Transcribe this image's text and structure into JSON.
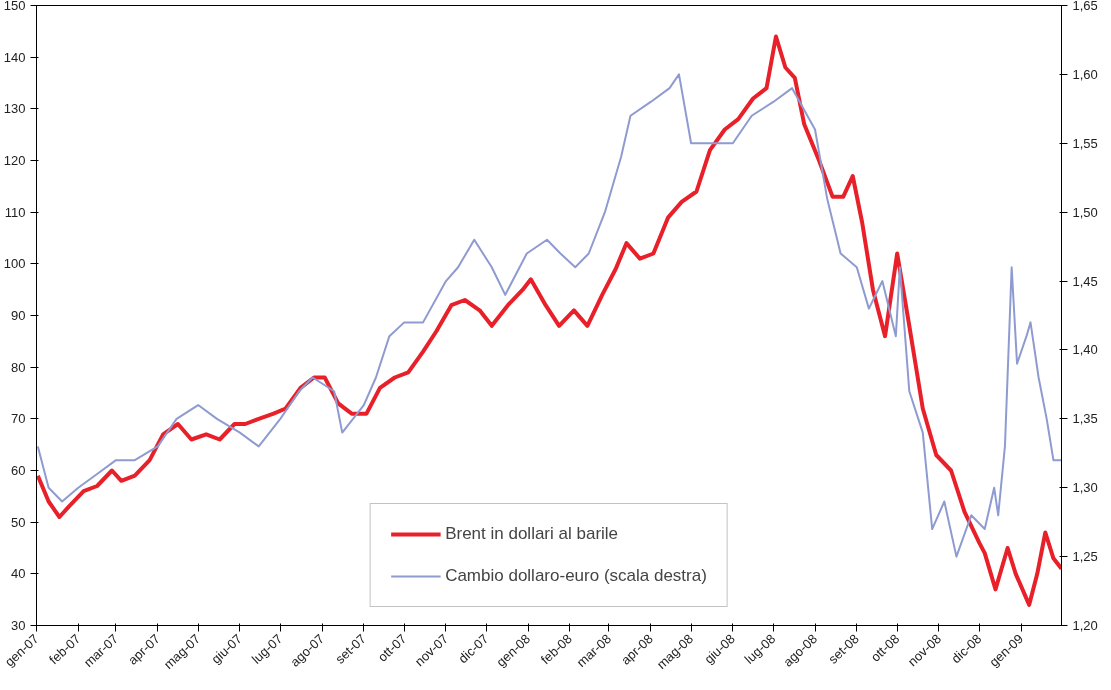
{
  "chart_data": {
    "type": "line",
    "series": [
      {
        "name": "Brent in dollari al barile",
        "color": "#e8202a",
        "x": [
          "2007-01-02",
          "2007-01-10",
          "2007-01-18",
          "2007-01-25",
          "2007-02-05",
          "2007-02-15",
          "2007-02-26",
          "2007-03-05",
          "2007-03-15",
          "2007-03-26",
          "2007-04-05",
          "2007-04-16",
          "2007-04-26",
          "2007-05-07",
          "2007-05-17",
          "2007-05-28",
          "2007-06-05",
          "2007-06-15",
          "2007-06-26",
          "2007-07-05",
          "2007-07-16",
          "2007-07-26",
          "2007-08-03",
          "2007-08-13",
          "2007-08-23",
          "2007-09-03",
          "2007-09-13",
          "2007-09-24",
          "2007-10-04",
          "2007-10-15",
          "2007-10-25",
          "2007-11-05",
          "2007-11-15",
          "2007-11-26",
          "2007-12-05",
          "2007-12-17",
          "2007-12-28",
          "2008-01-03",
          "2008-01-14",
          "2008-01-24",
          "2008-02-04",
          "2008-02-14",
          "2008-02-25",
          "2008-03-06",
          "2008-03-14",
          "2008-03-24",
          "2008-04-03",
          "2008-04-14",
          "2008-04-24",
          "2008-05-05",
          "2008-05-15",
          "2008-05-26",
          "2008-06-05",
          "2008-06-16",
          "2008-06-26",
          "2008-07-03",
          "2008-07-10",
          "2008-07-17",
          "2008-07-24",
          "2008-08-04",
          "2008-08-14",
          "2008-08-22",
          "2008-08-29",
          "2008-09-05",
          "2008-09-13",
          "2008-09-22",
          "2008-10-01",
          "2008-10-10",
          "2008-10-20",
          "2008-10-30",
          "2008-11-10",
          "2008-11-20",
          "2008-12-01",
          "2008-12-05",
          "2008-12-13",
          "2008-12-22",
          "2008-12-28",
          "2009-01-07",
          "2009-01-13",
          "2009-01-19",
          "2009-01-25",
          "2009-01-31"
        ],
        "values": [
          59,
          54,
          51,
          53,
          56,
          57,
          60,
          58,
          59,
          62,
          67,
          69,
          66,
          67,
          66,
          69,
          69,
          70,
          71,
          72,
          76,
          78,
          78,
          73,
          71,
          71,
          76,
          78,
          79,
          83,
          87,
          92,
          93,
          91,
          88,
          92,
          95,
          97,
          92,
          88,
          91,
          88,
          94,
          99,
          104,
          101,
          102,
          109,
          112,
          114,
          122,
          126,
          128,
          132,
          134,
          144,
          138,
          136,
          127,
          120,
          113,
          113,
          117,
          108,
          95,
          86,
          102,
          88,
          72,
          63,
          60,
          52,
          46,
          44,
          37,
          45,
          40,
          34,
          40,
          48,
          43,
          41
        ]
      },
      {
        "name": "Cambio dollaro-euro (scala destra)",
        "color": "#8f9bd0",
        "axis": "y2",
        "x": [
          "2007-01-02",
          "2007-01-10",
          "2007-01-20",
          "2007-02-01",
          "2007-02-15",
          "2007-03-01",
          "2007-03-15",
          "2007-04-01",
          "2007-04-15",
          "2007-05-01",
          "2007-05-15",
          "2007-06-01",
          "2007-06-15",
          "2007-07-01",
          "2007-07-15",
          "2007-07-25",
          "2007-08-10",
          "2007-08-16",
          "2007-09-01",
          "2007-09-10",
          "2007-09-20",
          "2007-10-01",
          "2007-10-15",
          "2007-11-01",
          "2007-11-10",
          "2007-11-22",
          "2007-12-05",
          "2007-12-15",
          "2007-12-31",
          "2008-01-15",
          "2008-01-25",
          "2008-02-05",
          "2008-02-15",
          "2008-02-27",
          "2008-03-10",
          "2008-03-17",
          "2008-04-01",
          "2008-04-15",
          "2008-04-22",
          "2008-05-01",
          "2008-05-15",
          "2008-06-01",
          "2008-06-15",
          "2008-07-01",
          "2008-07-15",
          "2008-08-01",
          "2008-08-10",
          "2008-08-20",
          "2008-09-01",
          "2008-09-10",
          "2008-09-20",
          "2008-09-30",
          "2008-10-03",
          "2008-10-10",
          "2008-10-20",
          "2008-10-27",
          "2008-11-05",
          "2008-11-14",
          "2008-11-25",
          "2008-12-05",
          "2008-12-12",
          "2008-12-15",
          "2008-12-20",
          "2008-12-25",
          "2008-12-29",
          "2009-01-05",
          "2009-01-08",
          "2009-01-14",
          "2009-01-20",
          "2009-01-25",
          "2009-01-31"
        ],
        "values": [
          1.33,
          1.3,
          1.29,
          1.3,
          1.31,
          1.32,
          1.32,
          1.33,
          1.35,
          1.36,
          1.35,
          1.34,
          1.33,
          1.35,
          1.37,
          1.38,
          1.37,
          1.34,
          1.36,
          1.38,
          1.41,
          1.42,
          1.42,
          1.45,
          1.46,
          1.48,
          1.46,
          1.44,
          1.47,
          1.48,
          1.47,
          1.46,
          1.47,
          1.5,
          1.54,
          1.57,
          1.58,
          1.59,
          1.6,
          1.55,
          1.55,
          1.55,
          1.57,
          1.58,
          1.59,
          1.56,
          1.51,
          1.47,
          1.46,
          1.43,
          1.45,
          1.41,
          1.46,
          1.37,
          1.34,
          1.27,
          1.29,
          1.25,
          1.28,
          1.27,
          1.3,
          1.28,
          1.33,
          1.46,
          1.39,
          1.41,
          1.42,
          1.38,
          1.35,
          1.32,
          1.32
        ]
      }
    ],
    "xlim": [
      "2007-01-01",
      "2009-01-31"
    ],
    "xticks": [
      {
        "value": "2007-01-01",
        "label": "gen-07"
      },
      {
        "value": "2007-02-01",
        "label": "feb-07"
      },
      {
        "value": "2007-03-01",
        "label": "mar-07"
      },
      {
        "value": "2007-04-01",
        "label": "apr-07"
      },
      {
        "value": "2007-05-01",
        "label": "mag-07"
      },
      {
        "value": "2007-06-01",
        "label": "giu-07"
      },
      {
        "value": "2007-07-01",
        "label": "lug-07"
      },
      {
        "value": "2007-08-01",
        "label": "ago-07"
      },
      {
        "value": "2007-09-01",
        "label": "set-07"
      },
      {
        "value": "2007-10-01",
        "label": "ott-07"
      },
      {
        "value": "2007-11-01",
        "label": "nov-07"
      },
      {
        "value": "2007-12-01",
        "label": "dic-07"
      },
      {
        "value": "2008-01-01",
        "label": "gen-08"
      },
      {
        "value": "2008-02-01",
        "label": "feb-08"
      },
      {
        "value": "2008-03-01",
        "label": "mar-08"
      },
      {
        "value": "2008-04-01",
        "label": "apr-08"
      },
      {
        "value": "2008-05-01",
        "label": "mag-08"
      },
      {
        "value": "2008-06-01",
        "label": "giu-08"
      },
      {
        "value": "2008-07-01",
        "label": "lug-08"
      },
      {
        "value": "2008-08-01",
        "label": "ago-08"
      },
      {
        "value": "2008-09-01",
        "label": "set-08"
      },
      {
        "value": "2008-10-01",
        "label": "ott-08"
      },
      {
        "value": "2008-11-01",
        "label": "nov-08"
      },
      {
        "value": "2008-12-01",
        "label": "dic-08"
      },
      {
        "value": "2009-01-01",
        "label": "gen-09"
      }
    ],
    "ylim": [
      30,
      150
    ],
    "yticks": [
      30,
      40,
      50,
      60,
      70,
      80,
      90,
      100,
      110,
      120,
      130,
      140,
      150
    ],
    "y2lim": [
      1.2,
      1.65
    ],
    "y2ticks": [
      {
        "value": 1.2,
        "label": "1,20"
      },
      {
        "value": 1.25,
        "label": "1,25"
      },
      {
        "value": 1.3,
        "label": "1,30"
      },
      {
        "value": 1.35,
        "label": "1,35"
      },
      {
        "value": 1.4,
        "label": "1,40"
      },
      {
        "value": 1.45,
        "label": "1,45"
      },
      {
        "value": 1.5,
        "label": "1,50"
      },
      {
        "value": 1.55,
        "label": "1,55"
      },
      {
        "value": 1.6,
        "label": "1,60"
      },
      {
        "value": 1.65,
        "label": "1,65"
      }
    ],
    "legend": "bottom",
    "grid": false,
    "marker": "none",
    "line_style": "solid"
  }
}
